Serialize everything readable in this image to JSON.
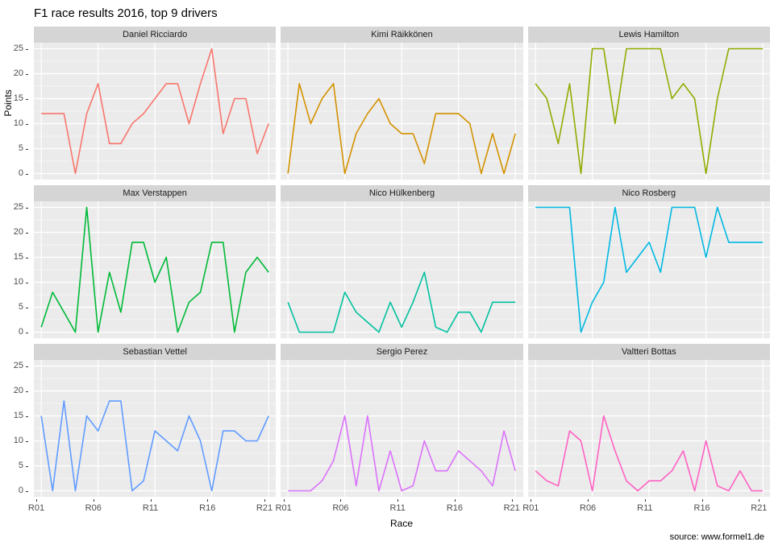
{
  "title": "F1 race results 2016, top 9 drivers",
  "source": "source: www.formel1.de",
  "chart_data": {
    "type": "line",
    "facet_layout": "3x3 facet grid, one panel per driver",
    "title": "F1 race results 2016, top 9 drivers",
    "xlabel": "Race",
    "ylabel": "Points",
    "ylim": [
      0,
      25
    ],
    "grid": "white major and minor gridlines on gray panel",
    "legend_position": "none (facet strips instead)",
    "panel_bg": "#EBEBEB",
    "strip_bg": "#D5D5D5",
    "axis_text_color": "#4D4D4D",
    "x": [
      "R01",
      "R02",
      "R03",
      "R04",
      "R05",
      "R06",
      "R07",
      "R08",
      "R09",
      "R10",
      "R11",
      "R12",
      "R13",
      "R14",
      "R15",
      "R16",
      "R17",
      "R18",
      "R19",
      "R20",
      "R21"
    ],
    "x_break_indices": [
      0,
      5,
      10,
      15,
      20
    ],
    "y_breaks": [
      0,
      5,
      10,
      15,
      20,
      25
    ],
    "y_minor_breaks": [
      2.5,
      7.5,
      12.5,
      17.5,
      22.5
    ],
    "series": [
      {
        "name": "Daniel Ricciardo",
        "color": "#F8766D",
        "values": [
          12,
          12,
          12,
          0,
          12,
          18,
          6,
          6,
          10,
          12,
          15,
          18,
          18,
          10,
          18,
          25,
          8,
          15,
          15,
          4,
          10
        ]
      },
      {
        "name": "Kimi Räikkönen",
        "color": "#D39200",
        "values": [
          0,
          18,
          10,
          15,
          18,
          0,
          8,
          12,
          15,
          10,
          8,
          8,
          2,
          12,
          12,
          12,
          10,
          0,
          8,
          0,
          8
        ]
      },
      {
        "name": "Lewis Hamilton",
        "color": "#93AA00",
        "values": [
          18,
          15,
          6,
          18,
          0,
          25,
          25,
          10,
          25,
          25,
          25,
          25,
          15,
          18,
          15,
          0,
          15,
          25,
          25,
          25,
          25
        ]
      },
      {
        "name": "Max Verstappen",
        "color": "#00BA38",
        "values": [
          1,
          8,
          4,
          0,
          25,
          0,
          12,
          4,
          18,
          18,
          10,
          15,
          0,
          6,
          8,
          18,
          18,
          0,
          12,
          15,
          12
        ]
      },
      {
        "name": "Nico Hülkenberg",
        "color": "#00C19F",
        "values": [
          6,
          0,
          0,
          0,
          0,
          8,
          4,
          2,
          0,
          6,
          1,
          6,
          12,
          1,
          0,
          4,
          4,
          0,
          6,
          6,
          6
        ]
      },
      {
        "name": "Nico Rosberg",
        "color": "#00B9E3",
        "values": [
          25,
          25,
          25,
          25,
          0,
          6,
          10,
          25,
          12,
          15,
          18,
          12,
          25,
          25,
          25,
          15,
          25,
          18,
          18,
          18,
          18
        ]
      },
      {
        "name": "Sebastian Vettel",
        "color": "#619CFF",
        "values": [
          15,
          0,
          18,
          0,
          15,
          12,
          18,
          18,
          0,
          2,
          12,
          10,
          8,
          15,
          10,
          0,
          12,
          12,
          10,
          10,
          15
        ]
      },
      {
        "name": "Sergio Perez",
        "color": "#DB72FB",
        "values": [
          0,
          0,
          0,
          2,
          6,
          15,
          1,
          15,
          0,
          8,
          0,
          1,
          10,
          4,
          4,
          8,
          6,
          4,
          1,
          12,
          4
        ]
      },
      {
        "name": "Valtteri Bottas",
        "color": "#FF61C3",
        "values": [
          4,
          2,
          1,
          12,
          10,
          0,
          15,
          8,
          2,
          0,
          2,
          2,
          4,
          8,
          0,
          10,
          1,
          0,
          4,
          0,
          0
        ]
      }
    ]
  }
}
